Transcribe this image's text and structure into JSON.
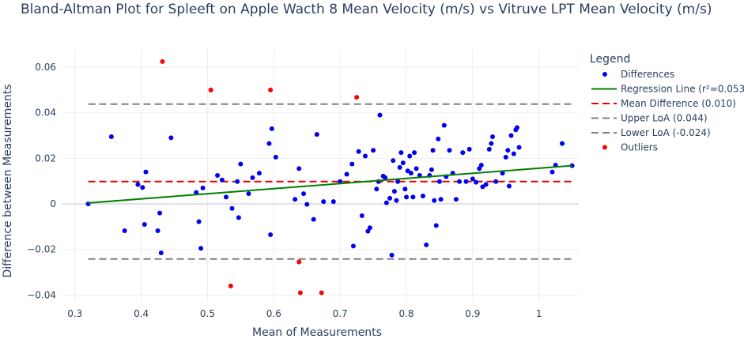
{
  "chart_data": {
    "type": "scatter",
    "title": "Bland-Altman Plot for Spleeft on Apple Wacth 8 Mean Velocity (m/s) vs Vitruve LPT Mean Velocity (m/s)",
    "xlabel": "Mean of Measurements",
    "ylabel": "Difference between Measurements",
    "xlim": [
      0.28,
      1.06
    ],
    "ylim": [
      -0.043,
      0.068
    ],
    "x_ticks": [
      0.3,
      0.4,
      0.5,
      0.6,
      0.7,
      0.8,
      0.9,
      1
    ],
    "x_tick_labels": [
      "0.3",
      "0.4",
      "0.5",
      "0.6",
      "0.7",
      "0.8",
      "0.9",
      "1"
    ],
    "y_ticks": [
      -0.04,
      -0.02,
      0,
      0.02,
      0.04,
      0.06
    ],
    "y_tick_labels": [
      "−0.04",
      "−0.02",
      "0",
      "0.02",
      "0.04",
      "0.06"
    ],
    "grid": true,
    "legend_title": "Legend",
    "legend_position": "right",
    "colors": {
      "differences": "#0000ee",
      "regression": "#008000",
      "mean": "#e60000",
      "loa": "#808080",
      "outliers": "#ff0000",
      "grid": "#ebedf2"
    },
    "series": [
      {
        "name": "Differences",
        "kind": "markers",
        "points": [
          [
            0.32,
            0.0
          ],
          [
            0.355,
            0.0295
          ],
          [
            0.375,
            -0.0118
          ],
          [
            0.395,
            0.0085
          ],
          [
            0.402,
            0.0072
          ],
          [
            0.405,
            -0.009
          ],
          [
            0.407,
            0.014
          ],
          [
            0.425,
            -0.0118
          ],
          [
            0.428,
            -0.004
          ],
          [
            0.43,
            -0.0215
          ],
          [
            0.445,
            0.029
          ],
          [
            0.483,
            0.005
          ],
          [
            0.487,
            -0.0078
          ],
          [
            0.49,
            -0.0195
          ],
          [
            0.493,
            0.007
          ],
          [
            0.515,
            0.0125
          ],
          [
            0.522,
            0.0105
          ],
          [
            0.528,
            0.003
          ],
          [
            0.537,
            -0.002
          ],
          [
            0.545,
            0.0098
          ],
          [
            0.547,
            -0.006
          ],
          [
            0.55,
            0.0175
          ],
          [
            0.562,
            0.0045
          ],
          [
            0.568,
            0.0115
          ],
          [
            0.578,
            0.0135
          ],
          [
            0.593,
            0.0265
          ],
          [
            0.595,
            -0.0135
          ],
          [
            0.597,
            0.033
          ],
          [
            0.603,
            0.0205
          ],
          [
            0.632,
            0.002
          ],
          [
            0.638,
            0.0155
          ],
          [
            0.645,
            0.0045
          ],
          [
            0.65,
            -0.0002
          ],
          [
            0.66,
            -0.0068
          ],
          [
            0.665,
            0.0305
          ],
          [
            0.675,
            0.001
          ],
          [
            0.69,
            0.001
          ],
          [
            0.7,
            0.0098
          ],
          [
            0.71,
            0.013
          ],
          [
            0.718,
            0.0175
          ],
          [
            0.72,
            -0.0185
          ],
          [
            0.728,
            0.023
          ],
          [
            0.733,
            -0.0052
          ],
          [
            0.738,
            0.021
          ],
          [
            0.742,
            -0.012
          ],
          [
            0.745,
            -0.0105
          ],
          [
            0.75,
            0.0235
          ],
          [
            0.755,
            0.0065
          ],
          [
            0.758,
            0.0098
          ],
          [
            0.76,
            0.039
          ],
          [
            0.765,
            0.0122
          ],
          [
            0.768,
            0.0115
          ],
          [
            0.77,
            0.0005
          ],
          [
            0.775,
            0.0025
          ],
          [
            0.778,
            -0.0225
          ],
          [
            0.78,
            0.019
          ],
          [
            0.782,
            0.0055
          ],
          [
            0.785,
            0.0015
          ],
          [
            0.787,
            0.0098
          ],
          [
            0.79,
            0.016
          ],
          [
            0.792,
            0.0225
          ],
          [
            0.795,
            0.018
          ],
          [
            0.798,
            0.0065
          ],
          [
            0.8,
            0.003
          ],
          [
            0.802,
            0.0145
          ],
          [
            0.805,
            0.021
          ],
          [
            0.807,
            0.0135
          ],
          [
            0.81,
            0.003
          ],
          [
            0.812,
            0.0225
          ],
          [
            0.815,
            0.0155
          ],
          [
            0.82,
            0.0125
          ],
          [
            0.825,
            0.0035
          ],
          [
            0.83,
            -0.018
          ],
          [
            0.835,
            0.0125
          ],
          [
            0.838,
            0.015
          ],
          [
            0.84,
            0.0235
          ],
          [
            0.842,
            0.0015
          ],
          [
            0.845,
            -0.0095
          ],
          [
            0.848,
            0.0285
          ],
          [
            0.85,
            0.0098
          ],
          [
            0.852,
            0.002
          ],
          [
            0.857,
            0.0345
          ],
          [
            0.86,
            0.012
          ],
          [
            0.865,
            0.0235
          ],
          [
            0.87,
            0.0135
          ],
          [
            0.875,
            0.002
          ],
          [
            0.88,
            0.0098
          ],
          [
            0.885,
            0.0225
          ],
          [
            0.89,
            0.0098
          ],
          [
            0.895,
            0.024
          ],
          [
            0.9,
            0.011
          ],
          [
            0.905,
            0.0095
          ],
          [
            0.91,
            0.0155
          ],
          [
            0.913,
            0.017
          ],
          [
            0.915,
            0.0075
          ],
          [
            0.92,
            0.0085
          ],
          [
            0.925,
            0.024
          ],
          [
            0.928,
            0.0265
          ],
          [
            0.93,
            0.0295
          ],
          [
            0.935,
            0.0098
          ],
          [
            0.945,
            0.0135
          ],
          [
            0.95,
            0.0205
          ],
          [
            0.953,
            0.0235
          ],
          [
            0.955,
            0.0078
          ],
          [
            0.958,
            0.03
          ],
          [
            0.962,
            0.022
          ],
          [
            0.965,
            0.0325
          ],
          [
            0.967,
            0.0335
          ],
          [
            0.97,
            0.0248
          ],
          [
            1.02,
            0.014
          ],
          [
            1.025,
            0.017
          ],
          [
            1.035,
            0.0265
          ],
          [
            1.05,
            0.0168
          ]
        ]
      },
      {
        "name": "Regression Line (r²=0.053)",
        "kind": "line",
        "x": [
          0.32,
          1.05
        ],
        "y": [
          0.0004,
          0.0168
        ]
      },
      {
        "name": "Mean Difference (0.010)",
        "kind": "hline",
        "value": 0.0098,
        "x_range": [
          0.32,
          1.05
        ]
      },
      {
        "name": "Upper LoA (0.044)",
        "kind": "hline",
        "value": 0.0438,
        "x_range": [
          0.32,
          1.05
        ]
      },
      {
        "name": "Lower LoA (-0.024)",
        "kind": "hline",
        "value": -0.0242,
        "x_range": [
          0.32,
          1.05
        ]
      },
      {
        "name": "Outliers",
        "kind": "markers",
        "points": [
          [
            0.432,
            0.0625
          ],
          [
            0.505,
            0.05
          ],
          [
            0.595,
            0.05
          ],
          [
            0.725,
            0.0468
          ],
          [
            0.535,
            -0.036
          ],
          [
            0.638,
            -0.0255
          ],
          [
            0.64,
            -0.039
          ],
          [
            0.672,
            -0.039
          ]
        ]
      }
    ]
  }
}
